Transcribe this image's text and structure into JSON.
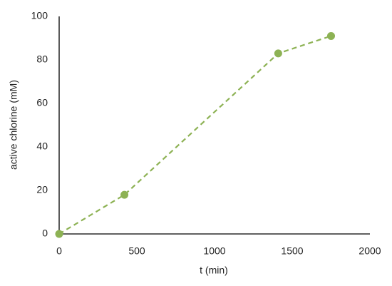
{
  "chart_data": {
    "type": "line",
    "x_label": "t (min)",
    "y_label": "active chlorine (mM)",
    "x": [
      0,
      420,
      1410,
      1750
    ],
    "values": [
      0,
      18,
      83,
      91
    ],
    "color": "#8db254",
    "line_style": "dashed",
    "markers": true,
    "xlim": [
      0,
      2000
    ],
    "xticks": [
      0,
      500,
      1000,
      1500,
      2000
    ],
    "ylim": [
      0,
      100
    ],
    "yticks": [
      0,
      20,
      40,
      60,
      80,
      100
    ],
    "grid": false
  }
}
